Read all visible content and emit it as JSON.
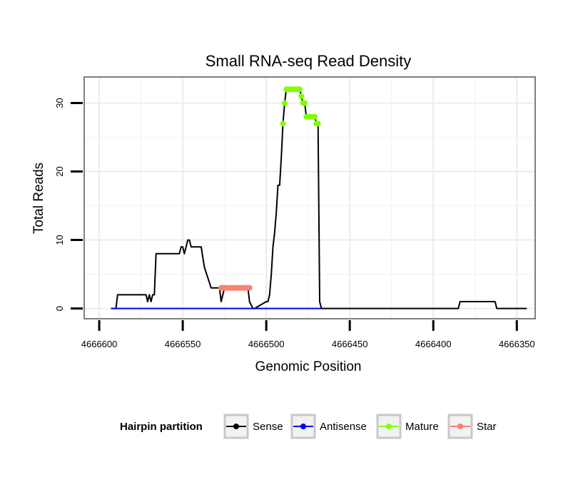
{
  "chart_data": {
    "type": "line",
    "title": "Small RNA-seq Read Density",
    "xlabel": "Genomic Position",
    "ylabel": "Total Reads",
    "xlim": [
      4666609,
      4666339
    ],
    "ylim": [
      -1.5,
      33.8
    ],
    "x_reversed": true,
    "x_ticks": [
      4666600,
      4666550,
      4666500,
      4666450,
      4666400,
      4666350
    ],
    "x_tick_labels": [
      "4666600",
      "4666550",
      "4666500",
      "4666450",
      "4666400",
      "4666350"
    ],
    "y_ticks": [
      0,
      10,
      20,
      30
    ],
    "y_tick_labels": [
      "0",
      "10",
      "20",
      "30"
    ],
    "grid": true,
    "legend": {
      "title": "Hairpin partition",
      "position": "bottom",
      "entries": [
        {
          "name": "Sense",
          "color": "#000000"
        },
        {
          "name": "Antisense",
          "color": "#0000ff"
        },
        {
          "name": "Mature",
          "color": "#7fff00"
        },
        {
          "name": "Star",
          "color": "#fa8072"
        }
      ]
    },
    "series": [
      {
        "name": "Sense",
        "style": "line",
        "color": "#000000",
        "x": [
          4666593,
          4666590,
          4666589,
          4666572,
          4666571,
          4666570,
          4666569,
          4666568,
          4666567,
          4666566,
          4666564,
          4666552,
          4666551,
          4666550,
          4666549,
          4666548,
          4666547,
          4666546,
          4666545,
          4666539,
          4666537,
          4666533,
          4666528,
          4666527,
          4666526,
          4666525,
          4666511,
          4666510,
          4666508,
          4666507,
          4666500,
          4666499,
          4666498,
          4666497,
          4666496,
          4666495,
          4666494,
          4666493,
          4666492,
          4666491,
          4666490,
          4666489,
          4666488,
          4666487,
          4666486,
          4666485,
          4666480,
          4666479,
          4666478,
          4666477,
          4666476,
          4666475,
          4666474,
          4666471,
          4666470,
          4666469,
          4666468,
          4666467,
          4666385,
          4666384,
          4666363,
          4666362,
          4666344
        ],
        "y": [
          0,
          0,
          2,
          2,
          1,
          2,
          1,
          2,
          2,
          8,
          8,
          8,
          9,
          9,
          8,
          9,
          10,
          10,
          9,
          9,
          6,
          3,
          3,
          1,
          2,
          3,
          3,
          1,
          0,
          0,
          1,
          1,
          2,
          5,
          9,
          11,
          14,
          18,
          18,
          22,
          27,
          30,
          32,
          32,
          32,
          32,
          32,
          31,
          30,
          30,
          28,
          28,
          28,
          28,
          27,
          27,
          1,
          0,
          0,
          1,
          1,
          0,
          0
        ]
      },
      {
        "name": "Antisense",
        "style": "line",
        "color": "#0000ff",
        "x": [
          4666593,
          4666467
        ],
        "y": [
          0,
          0
        ]
      },
      {
        "name": "Mature",
        "style": "points",
        "color": "#7fff00",
        "x": [
          4666490,
          4666489,
          4666488,
          4666487,
          4666486,
          4666485,
          4666484,
          4666483,
          4666482,
          4666481,
          4666480,
          4666479,
          4666478,
          4666477,
          4666476,
          4666475,
          4666474,
          4666473,
          4666472,
          4666471,
          4666470,
          4666469
        ],
        "y": [
          27,
          30,
          32,
          32,
          32,
          32,
          32,
          32,
          32,
          32,
          32,
          31,
          30,
          30,
          28,
          28,
          28,
          28,
          28,
          28,
          27,
          27
        ]
      },
      {
        "name": "Star",
        "style": "points",
        "color": "#fa8072",
        "x": [
          4666527,
          4666526,
          4666525,
          4666524,
          4666523,
          4666522,
          4666521,
          4666520,
          4666519,
          4666518,
          4666517,
          4666516,
          4666515,
          4666514,
          4666513,
          4666512,
          4666511,
          4666510
        ],
        "y": [
          3,
          3,
          3,
          3,
          3,
          3,
          3,
          3,
          3,
          3,
          3,
          3,
          3,
          3,
          3,
          3,
          3,
          3
        ]
      }
    ]
  }
}
